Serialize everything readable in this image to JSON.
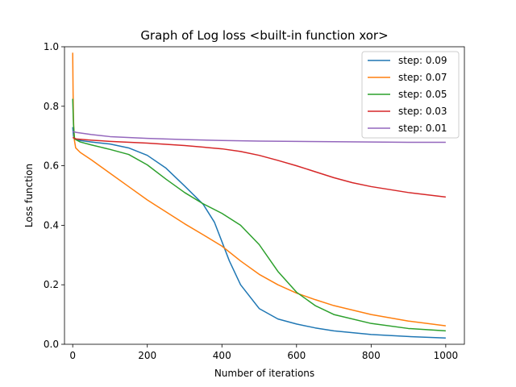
{
  "chart_data": {
    "type": "line",
    "title": "Graph of Log loss <built-in function xor>",
    "xlabel": "Number of iterations",
    "ylabel": "Loss function",
    "xlim": [
      -22,
      1050
    ],
    "ylim": [
      0.0,
      1.0
    ],
    "xticks": [
      0,
      200,
      400,
      600,
      800,
      1000
    ],
    "xtick_labels": [
      "0",
      "200",
      "400",
      "600",
      "800",
      "1000"
    ],
    "yticks": [
      0.0,
      0.2,
      0.4,
      0.6,
      0.8,
      1.0
    ],
    "ytick_labels": [
      "0.0",
      "0.2",
      "0.4",
      "0.6",
      "0.8",
      "1.0"
    ],
    "grid": false,
    "legend_position": "top-right",
    "series": [
      {
        "name": "step: 0.09",
        "color": "#1f77b4",
        "points": [
          [
            0,
            0.73
          ],
          [
            2,
            0.7
          ],
          [
            5,
            0.69
          ],
          [
            20,
            0.685
          ],
          [
            50,
            0.68
          ],
          [
            100,
            0.673
          ],
          [
            150,
            0.66
          ],
          [
            200,
            0.635
          ],
          [
            250,
            0.592
          ],
          [
            300,
            0.532
          ],
          [
            350,
            0.47
          ],
          [
            380,
            0.41
          ],
          [
            400,
            0.345
          ],
          [
            420,
            0.28
          ],
          [
            450,
            0.2
          ],
          [
            500,
            0.12
          ],
          [
            550,
            0.085
          ],
          [
            600,
            0.068
          ],
          [
            650,
            0.055
          ],
          [
            700,
            0.045
          ],
          [
            800,
            0.033
          ],
          [
            900,
            0.026
          ],
          [
            1000,
            0.021
          ]
        ]
      },
      {
        "name": "step: 0.07",
        "color": "#ff7f0e",
        "points": [
          [
            0,
            0.98
          ],
          [
            1,
            0.85
          ],
          [
            2,
            0.76
          ],
          [
            4,
            0.69
          ],
          [
            8,
            0.66
          ],
          [
            20,
            0.645
          ],
          [
            50,
            0.62
          ],
          [
            100,
            0.575
          ],
          [
            150,
            0.53
          ],
          [
            200,
            0.485
          ],
          [
            250,
            0.445
          ],
          [
            300,
            0.405
          ],
          [
            350,
            0.368
          ],
          [
            400,
            0.33
          ],
          [
            450,
            0.28
          ],
          [
            500,
            0.235
          ],
          [
            550,
            0.2
          ],
          [
            600,
            0.172
          ],
          [
            650,
            0.15
          ],
          [
            700,
            0.13
          ],
          [
            800,
            0.1
          ],
          [
            900,
            0.078
          ],
          [
            1000,
            0.062
          ]
        ]
      },
      {
        "name": "step: 0.05",
        "color": "#2ca02c",
        "points": [
          [
            0,
            0.825
          ],
          [
            2,
            0.74
          ],
          [
            5,
            0.69
          ],
          [
            20,
            0.68
          ],
          [
            50,
            0.67
          ],
          [
            100,
            0.655
          ],
          [
            150,
            0.638
          ],
          [
            200,
            0.603
          ],
          [
            250,
            0.555
          ],
          [
            300,
            0.51
          ],
          [
            350,
            0.472
          ],
          [
            400,
            0.44
          ],
          [
            450,
            0.4
          ],
          [
            500,
            0.335
          ],
          [
            550,
            0.245
          ],
          [
            600,
            0.175
          ],
          [
            650,
            0.13
          ],
          [
            700,
            0.1
          ],
          [
            800,
            0.07
          ],
          [
            900,
            0.053
          ],
          [
            1000,
            0.045
          ]
        ]
      },
      {
        "name": "step: 0.03",
        "color": "#d62728",
        "points": [
          [
            0,
            0.695
          ],
          [
            10,
            0.69
          ],
          [
            50,
            0.686
          ],
          [
            100,
            0.682
          ],
          [
            200,
            0.676
          ],
          [
            300,
            0.668
          ],
          [
            400,
            0.657
          ],
          [
            450,
            0.648
          ],
          [
            500,
            0.635
          ],
          [
            550,
            0.618
          ],
          [
            600,
            0.6
          ],
          [
            650,
            0.58
          ],
          [
            700,
            0.56
          ],
          [
            750,
            0.543
          ],
          [
            800,
            0.53
          ],
          [
            900,
            0.51
          ],
          [
            1000,
            0.495
          ]
        ]
      },
      {
        "name": "step: 0.01",
        "color": "#9467bd",
        "points": [
          [
            0,
            0.715
          ],
          [
            10,
            0.712
          ],
          [
            50,
            0.705
          ],
          [
            100,
            0.698
          ],
          [
            200,
            0.692
          ],
          [
            300,
            0.688
          ],
          [
            400,
            0.685
          ],
          [
            500,
            0.683
          ],
          [
            600,
            0.682
          ],
          [
            700,
            0.681
          ],
          [
            800,
            0.68
          ],
          [
            900,
            0.679
          ],
          [
            1000,
            0.679
          ]
        ]
      }
    ]
  }
}
